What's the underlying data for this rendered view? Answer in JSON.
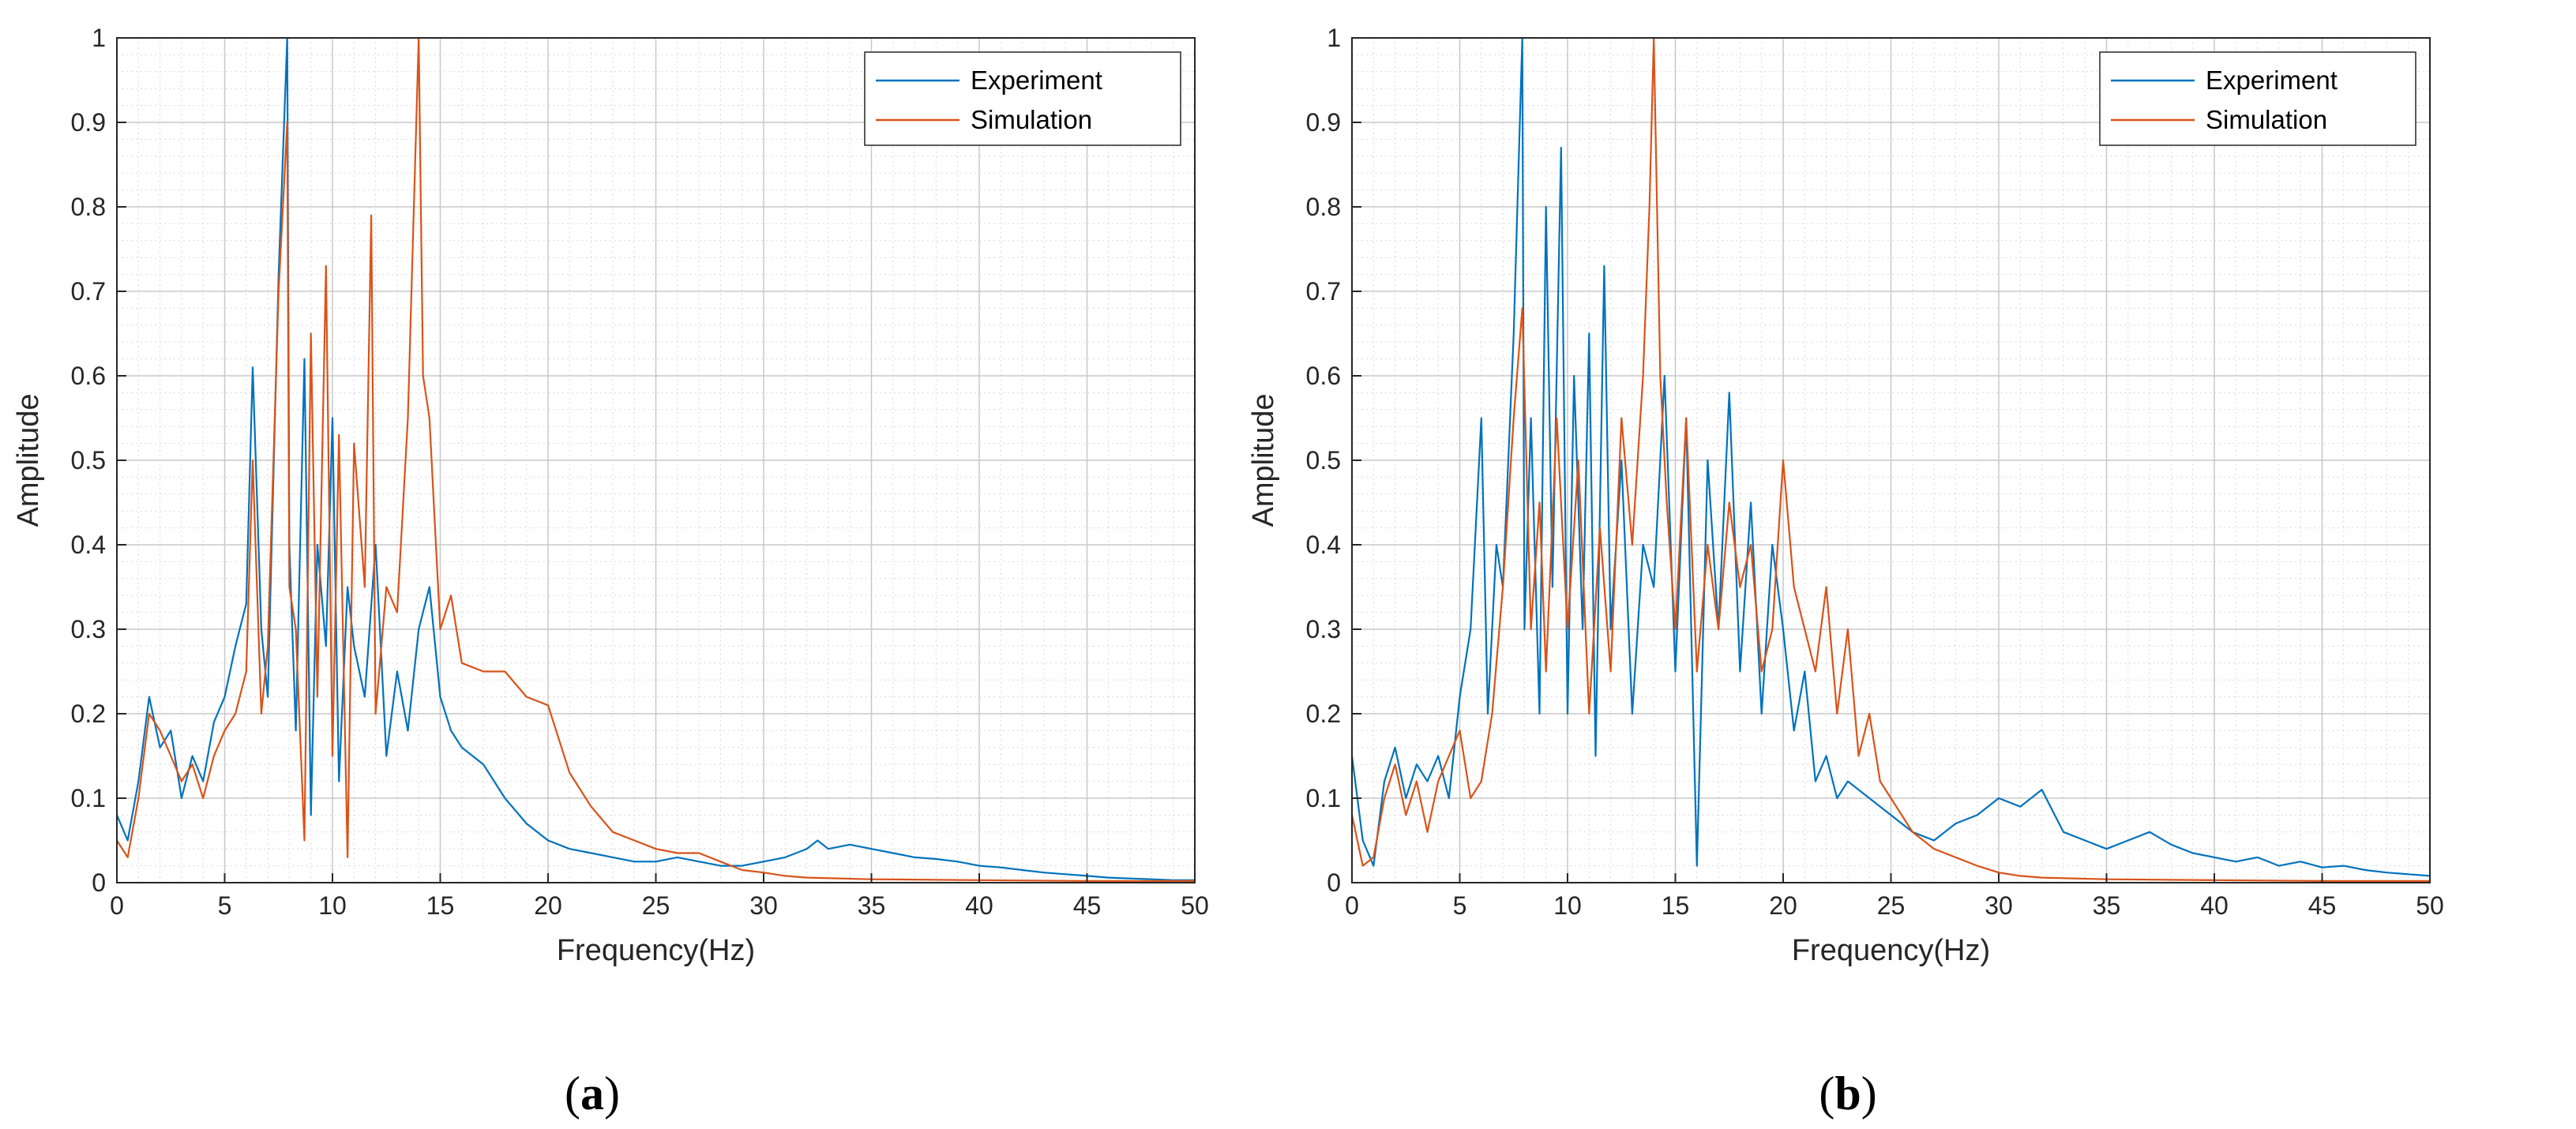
{
  "colors": {
    "experiment": "#0072BD",
    "simulation": "#D95319",
    "grid": "#d9d9d9",
    "axis": "#262626"
  },
  "chart_data": [
    {
      "panel_label": "a",
      "type": "line",
      "xlabel": "Frequency(Hz)",
      "ylabel": "Amplitude",
      "xlim": [
        0,
        50
      ],
      "ylim": [
        0,
        1
      ],
      "xticks": [
        "0",
        "5",
        "10",
        "15",
        "20",
        "25",
        "30",
        "35",
        "40",
        "45",
        "50"
      ],
      "yticks": [
        "0",
        "0.1",
        "0.2",
        "0.3",
        "0.4",
        "0.5",
        "0.6",
        "0.7",
        "0.8",
        "0.9",
        "1"
      ],
      "grid": true,
      "legend_position": "top-right",
      "series": [
        {
          "name": "Experiment",
          "color": "#0072BD",
          "x": [
            0,
            0.5,
            1,
            1.5,
            2,
            2.5,
            3,
            3.5,
            4,
            4.5,
            5,
            5.5,
            6,
            6.3,
            6.7,
            7,
            7.5,
            7.9,
            8,
            8.3,
            8.7,
            9,
            9.3,
            9.7,
            10,
            10.3,
            10.7,
            11,
            11.5,
            12,
            12.5,
            13,
            13.5,
            14,
            14.5,
            15,
            15.5,
            16,
            17,
            18,
            19,
            20,
            21,
            22,
            23,
            24,
            25,
            26,
            27,
            28,
            29,
            30,
            31,
            32,
            32.5,
            33,
            34,
            35,
            36,
            37,
            38,
            39,
            40,
            41,
            42,
            43,
            44,
            45,
            46,
            47,
            48,
            49,
            50
          ],
          "y": [
            0.08,
            0.05,
            0.12,
            0.22,
            0.16,
            0.18,
            0.1,
            0.15,
            0.12,
            0.19,
            0.22,
            0.28,
            0.33,
            0.61,
            0.3,
            0.22,
            0.72,
            1.0,
            0.4,
            0.18,
            0.62,
            0.08,
            0.4,
            0.28,
            0.55,
            0.12,
            0.35,
            0.28,
            0.22,
            0.4,
            0.15,
            0.25,
            0.18,
            0.3,
            0.35,
            0.22,
            0.18,
            0.16,
            0.14,
            0.1,
            0.07,
            0.05,
            0.04,
            0.035,
            0.03,
            0.025,
            0.025,
            0.03,
            0.025,
            0.02,
            0.02,
            0.025,
            0.03,
            0.04,
            0.05,
            0.04,
            0.045,
            0.04,
            0.035,
            0.03,
            0.028,
            0.025,
            0.02,
            0.018,
            0.015,
            0.012,
            0.01,
            0.008,
            0.006,
            0.005,
            0.004,
            0.003,
            0.003
          ]
        },
        {
          "name": "Simulation",
          "color": "#D95319",
          "x": [
            0,
            0.5,
            1,
            1.5,
            2,
            2.5,
            3,
            3.5,
            4,
            4.5,
            5,
            5.5,
            6,
            6.3,
            6.7,
            7,
            7.5,
            7.9,
            8,
            8.3,
            8.7,
            9,
            9.3,
            9.7,
            10,
            10.3,
            10.7,
            11,
            11.5,
            11.8,
            12,
            12.5,
            13,
            13.5,
            13.8,
            14,
            14.2,
            14.5,
            15,
            15.5,
            16,
            17,
            18,
            19,
            20,
            21,
            22,
            23,
            24,
            25,
            26,
            27,
            28,
            29,
            30,
            31,
            32,
            35,
            40,
            45,
            50
          ],
          "y": [
            0.05,
            0.03,
            0.1,
            0.2,
            0.18,
            0.15,
            0.12,
            0.14,
            0.1,
            0.15,
            0.18,
            0.2,
            0.25,
            0.5,
            0.2,
            0.28,
            0.7,
            0.9,
            0.35,
            0.3,
            0.05,
            0.65,
            0.22,
            0.73,
            0.15,
            0.53,
            0.03,
            0.52,
            0.35,
            0.79,
            0.2,
            0.35,
            0.32,
            0.55,
            0.82,
            1.0,
            0.6,
            0.55,
            0.3,
            0.34,
            0.26,
            0.25,
            0.25,
            0.22,
            0.21,
            0.13,
            0.09,
            0.06,
            0.05,
            0.04,
            0.035,
            0.035,
            0.025,
            0.015,
            0.012,
            0.008,
            0.006,
            0.004,
            0.003,
            0.002,
            0.002
          ]
        }
      ]
    },
    {
      "panel_label": "b",
      "type": "line",
      "xlabel": "Frequency(Hz)",
      "ylabel": "Amplitude",
      "xlim": [
        0,
        50
      ],
      "ylim": [
        0,
        1
      ],
      "xticks": [
        "0",
        "5",
        "10",
        "15",
        "20",
        "25",
        "30",
        "35",
        "40",
        "45",
        "50"
      ],
      "yticks": [
        "0",
        "0.1",
        "0.2",
        "0.3",
        "0.4",
        "0.5",
        "0.6",
        "0.7",
        "0.8",
        "0.9",
        "1"
      ],
      "grid": true,
      "legend_position": "top-right",
      "series": [
        {
          "name": "Experiment",
          "color": "#0072BD",
          "x": [
            0,
            0.5,
            1,
            1.5,
            2,
            2.5,
            3,
            3.5,
            4,
            4.5,
            5,
            5.5,
            6,
            6.3,
            6.7,
            7,
            7.5,
            7.9,
            8,
            8.3,
            8.7,
            9,
            9.3,
            9.7,
            10,
            10.3,
            10.7,
            11,
            11.3,
            11.7,
            12,
            12.5,
            13,
            13.5,
            14,
            14.5,
            15,
            15.5,
            16,
            16.5,
            17,
            17.5,
            18,
            18.5,
            19,
            19.5,
            20,
            20.5,
            21,
            21.5,
            22,
            22.5,
            23,
            24,
            25,
            26,
            27,
            28,
            29,
            30,
            31,
            32,
            33,
            34,
            35,
            36,
            37,
            38,
            39,
            40,
            41,
            42,
            43,
            44,
            45,
            46,
            47,
            48,
            49,
            50
          ],
          "y": [
            0.15,
            0.05,
            0.02,
            0.12,
            0.16,
            0.1,
            0.14,
            0.12,
            0.15,
            0.1,
            0.22,
            0.3,
            0.55,
            0.2,
            0.4,
            0.35,
            0.65,
            1.0,
            0.3,
            0.55,
            0.2,
            0.8,
            0.35,
            0.87,
            0.2,
            0.6,
            0.3,
            0.65,
            0.15,
            0.73,
            0.3,
            0.5,
            0.2,
            0.4,
            0.35,
            0.6,
            0.25,
            0.55,
            0.02,
            0.5,
            0.3,
            0.58,
            0.25,
            0.45,
            0.2,
            0.4,
            0.3,
            0.18,
            0.25,
            0.12,
            0.15,
            0.1,
            0.12,
            0.1,
            0.08,
            0.06,
            0.05,
            0.07,
            0.08,
            0.1,
            0.09,
            0.11,
            0.06,
            0.05,
            0.04,
            0.05,
            0.06,
            0.045,
            0.035,
            0.03,
            0.025,
            0.03,
            0.02,
            0.025,
            0.018,
            0.02,
            0.015,
            0.012,
            0.01,
            0.008
          ]
        },
        {
          "name": "Simulation",
          "color": "#D95319",
          "x": [
            0,
            0.5,
            1,
            1.5,
            2,
            2.5,
            3,
            3.5,
            4,
            4.5,
            5,
            5.5,
            6,
            6.5,
            7,
            7.5,
            7.9,
            8.3,
            8.7,
            9,
            9.5,
            10,
            10.5,
            11,
            11.5,
            12,
            12.5,
            13,
            13.5,
            13.8,
            14,
            14.3,
            14.6,
            15,
            15.5,
            16,
            16.5,
            17,
            17.5,
            18,
            18.5,
            19,
            19.5,
            20,
            20.5,
            21,
            21.5,
            22,
            22.5,
            23,
            23.5,
            24,
            24.5,
            25,
            26,
            27,
            28,
            29,
            30,
            31,
            32,
            35,
            40,
            45,
            50
          ],
          "y": [
            0.08,
            0.02,
            0.03,
            0.1,
            0.14,
            0.08,
            0.12,
            0.06,
            0.12,
            0.15,
            0.18,
            0.1,
            0.12,
            0.2,
            0.35,
            0.55,
            0.68,
            0.3,
            0.45,
            0.25,
            0.55,
            0.3,
            0.5,
            0.2,
            0.42,
            0.25,
            0.55,
            0.4,
            0.6,
            0.8,
            1.0,
            0.6,
            0.45,
            0.3,
            0.55,
            0.25,
            0.4,
            0.3,
            0.45,
            0.35,
            0.4,
            0.25,
            0.3,
            0.5,
            0.35,
            0.3,
            0.25,
            0.35,
            0.2,
            0.3,
            0.15,
            0.2,
            0.12,
            0.1,
            0.06,
            0.04,
            0.03,
            0.02,
            0.012,
            0.008,
            0.006,
            0.004,
            0.003,
            0.002,
            0.002
          ]
        }
      ]
    }
  ]
}
